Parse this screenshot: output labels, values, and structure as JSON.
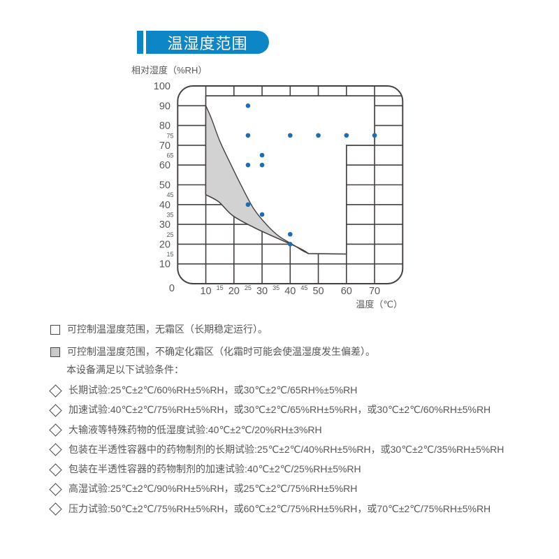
{
  "header": {
    "title": "温湿度范围"
  },
  "colors": {
    "accent": "#0d86c7",
    "point": "#1b6db6",
    "frost_fill": "#d2d2d3",
    "grid": "#45403f",
    "text": "#595757"
  },
  "chart_data": {
    "type": "scatter",
    "xlabel": "温度（℃）",
    "ylabel": "相对湿度（%RH）",
    "xlim": [
      0,
      80
    ],
    "ylim": [
      0,
      100
    ],
    "x_major_ticks": [
      10,
      20,
      30,
      40,
      50,
      60,
      70
    ],
    "x_minor_ticks": [
      15,
      25,
      35,
      45
    ],
    "y_major_ticks": [
      100,
      90,
      80,
      70,
      60,
      50,
      40,
      30,
      20,
      10
    ],
    "y_minor_ticks": [
      75,
      65,
      45,
      35,
      25,
      15
    ],
    "origin_label": "0",
    "grid_step_temp": 10,
    "grid_step_rh": 10,
    "points": [
      [
        25,
        90
      ],
      [
        25,
        75
      ],
      [
        40,
        75
      ],
      [
        50,
        75
      ],
      [
        60,
        75
      ],
      [
        70,
        75
      ],
      [
        30,
        65
      ],
      [
        25,
        60
      ],
      [
        30,
        60
      ],
      [
        25,
        40
      ],
      [
        30,
        35
      ],
      [
        40,
        25
      ],
      [
        40,
        20
      ]
    ],
    "control_region_corners": [
      [
        10,
        95
      ],
      [
        70,
        95
      ],
      [
        70,
        70
      ],
      [
        60,
        70
      ],
      [
        60,
        15
      ],
      [
        46.5,
        15.2
      ]
    ],
    "frost_zone": {
      "upper": [
        [
          10,
          90
        ],
        [
          12,
          83.5
        ],
        [
          15,
          72
        ],
        [
          19,
          60
        ],
        [
          23,
          48.5
        ],
        [
          27,
          38
        ],
        [
          31.5,
          30
        ],
        [
          36,
          24
        ],
        [
          41.5,
          19.3
        ],
        [
          44.5,
          16.6
        ],
        [
          46.5,
          15.2
        ]
      ],
      "lower": [
        [
          10,
          45
        ],
        [
          14.6,
          41.4
        ],
        [
          19.6,
          34.4
        ],
        [
          27.2,
          28.4
        ],
        [
          35.8,
          22.8
        ],
        [
          41,
          19.5
        ],
        [
          44.8,
          16.8
        ],
        [
          46.5,
          15.2
        ]
      ]
    }
  },
  "legend": {
    "items": [
      {
        "swatch": "white",
        "text": "可控制温湿度范围，无霜区（长期稳定运行）。"
      },
      {
        "swatch": "gray",
        "text": "可控制温湿度范围，不确定化霜区（化霜时可能会使温湿度发生偏差）。"
      }
    ]
  },
  "conditions": {
    "intro": "本设备满足以下试验条件：",
    "items": [
      "长期试验:25℃±2℃/60%RH±5%RH，或30℃±2℃/65RH%±5%RH",
      "加速试验:40℃±2℃/75%RH±5%RH，或30℃±2℃/65%RH±5%RH，或30℃±2℃/60%RH±5%RH",
      "大输液等特殊药物的低湿度试验:40℃±2℃/20%RH±3%RH",
      "包装在半透性容器中的药物制剂的长期试验:25℃±2℃/40%RH±5%RH，或30℃±2℃/35%RH±5%RH",
      "包装在半透性容器的药物制剂的加速试验:40℃±2℃/25%RH±5%RH",
      "高湿试验:25℃±2℃/90%RH±5%RH，或25℃±2℃/75%RH±5%RH",
      "压力试验:50℃±2℃/75%RH±5%RH，或60℃±2℃/75%RH±5%RH，或70℃±2℃/75%RH±5%RH"
    ]
  }
}
